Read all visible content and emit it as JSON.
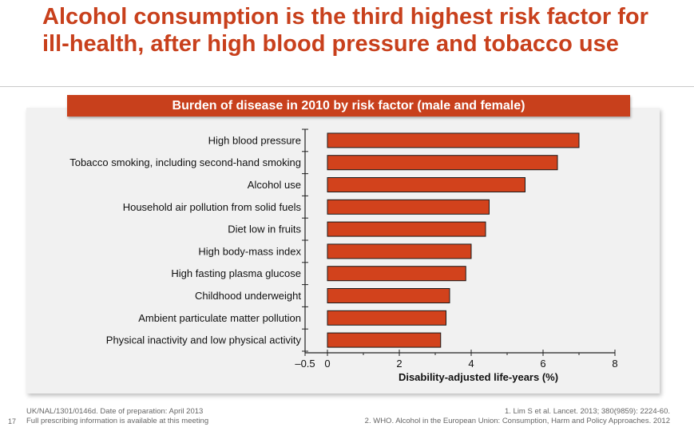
{
  "slide": {
    "title": "Alcohol consumption is the third highest risk factor for ill-health, after high blood pressure and tobacco use",
    "page_number": "17"
  },
  "chart_header": "Burden of disease in 2010 by risk factor (male and female)",
  "footer": {
    "code_line": "UK/NAL/1301/0146d. Date of preparation: April 2013",
    "info_line": "Full prescribing information is available at this meeting",
    "ref1": "1. Lim S et al. Lancet. 2013; 380(9859): 2224-60.",
    "ref2": "2. WHO. Alcohol in the European Union: Consumption, Harm and Policy Approaches. 2012"
  },
  "colors": {
    "accent": "#c8401c",
    "bar_fill": "#d2421c",
    "bar_stroke": "#1a1a1a",
    "panel": "#f1f1f1"
  },
  "chart_data": {
    "type": "bar",
    "orientation": "horizontal",
    "title": "Burden of disease in 2010 by risk factor (male and female)",
    "xlabel": "Disability-adjusted life-years (%)",
    "ylabel": "",
    "categories": [
      "High blood pressure",
      "Tobacco smoking, including second-hand smoking",
      "Alcohol use",
      "Household air pollution from solid fuels",
      "Diet low in fruits",
      "High body-mass index",
      "High fasting plasma glucose",
      "Childhood underweight",
      "Ambient particulate matter pollution",
      "Physical inactivity and low physical activity"
    ],
    "values": [
      7.0,
      6.4,
      5.5,
      4.5,
      4.4,
      4.0,
      3.85,
      3.4,
      3.3,
      3.15
    ],
    "xlim": [
      -0.5,
      8
    ],
    "xticks": [
      -0.5,
      0,
      2,
      4,
      6,
      8
    ],
    "xtick_labels": [
      "–0.5",
      "0",
      "2",
      "4",
      "6",
      "8"
    ],
    "grid": false,
    "legend": "none"
  }
}
